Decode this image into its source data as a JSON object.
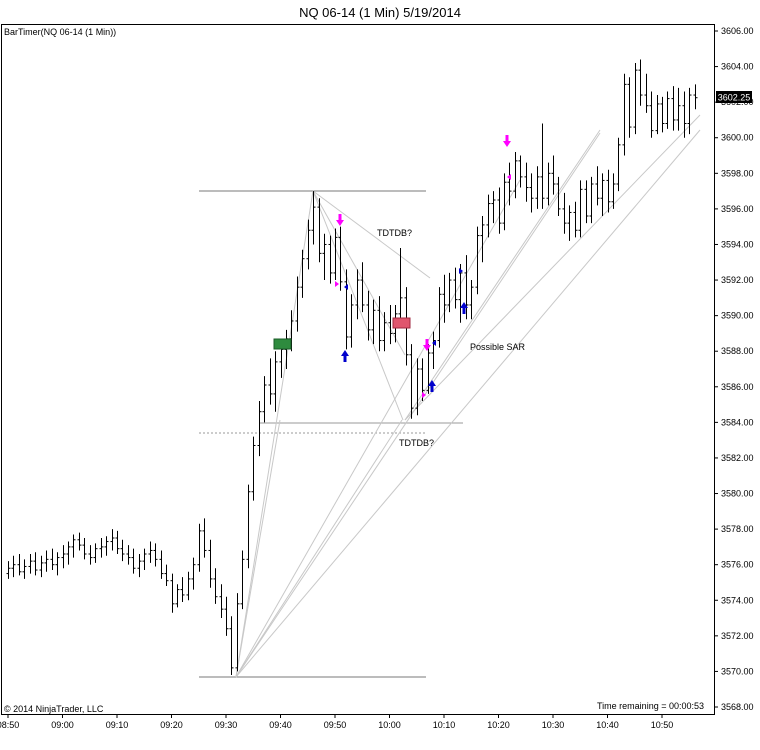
{
  "header": {
    "title": "NQ 06-14 (1 Min)  5/19/2014",
    "indicator": "BarTimer(NQ 06-14 (1 Min))",
    "copyright": "© 2014 NinjaTrader, LLC",
    "time_remaining": "Time remaining = 00:00:53",
    "last_price": "3602.25"
  },
  "chart_data": {
    "type": "ohlc",
    "title": "NQ 06-14 (1 Min)  5/19/2014",
    "ylim": [
      3668,
      3606
    ],
    "y_ticks": [
      "3606.00",
      "3604.00",
      "3602.00",
      "3600.00",
      "3598.00",
      "3596.00",
      "3594.00",
      "3592.00",
      "3590.00",
      "3588.00",
      "3586.00",
      "3584.00",
      "3582.00",
      "3580.00",
      "3578.00",
      "3576.00",
      "3574.00",
      "3572.00",
      "3570.00",
      "3568.00"
    ],
    "y_tick_values": [
      3606,
      3604,
      3602,
      3600,
      3598,
      3596,
      3594,
      3592,
      3590,
      3588,
      3586,
      3584,
      3582,
      3580,
      3578,
      3576,
      3574,
      3572,
      3570,
      3568
    ],
    "x_ticks": [
      "08:50",
      "09:00",
      "09:10",
      "09:20",
      "09:30",
      "09:40",
      "09:50",
      "10:00",
      "10:10",
      "10:20",
      "10:30",
      "10:40",
      "10:50"
    ],
    "x_tick_minutes": [
      0,
      10,
      20,
      30,
      40,
      50,
      60,
      70,
      80,
      90,
      100,
      110,
      120
    ],
    "bars": [
      [
        0,
        3575.5,
        3576.2,
        3575.2,
        3575.8
      ],
      [
        1,
        3575.8,
        3576.5,
        3575.3,
        3576.0
      ],
      [
        2,
        3576.0,
        3576.6,
        3575.4,
        3575.6
      ],
      [
        3,
        3575.6,
        3576.3,
        3575.2,
        3575.9
      ],
      [
        4,
        3575.9,
        3576.6,
        3575.5,
        3576.2
      ],
      [
        5,
        3576.2,
        3576.7,
        3575.4,
        3575.7
      ],
      [
        6,
        3575.7,
        3576.5,
        3575.3,
        3576.1
      ],
      [
        7,
        3576.1,
        3576.8,
        3575.6,
        3576.3
      ],
      [
        8,
        3576.3,
        3576.9,
        3575.7,
        3576.0
      ],
      [
        9,
        3576.0,
        3576.7,
        3575.4,
        3576.4
      ],
      [
        10,
        3576.4,
        3577.1,
        3575.8,
        3576.6
      ],
      [
        11,
        3576.6,
        3577.3,
        3576.0,
        3577.0
      ],
      [
        12,
        3577.0,
        3577.7,
        3576.4,
        3577.4
      ],
      [
        13,
        3577.4,
        3577.8,
        3576.8,
        3577.1
      ],
      [
        14,
        3577.1,
        3577.5,
        3576.3,
        3576.6
      ],
      [
        15,
        3576.6,
        3577.1,
        3576.0,
        3576.4
      ],
      [
        16,
        3576.4,
        3577.2,
        3576.1,
        3576.9
      ],
      [
        17,
        3576.9,
        3577.5,
        3576.4,
        3577.0
      ],
      [
        18,
        3577.0,
        3577.6,
        3576.5,
        3577.3
      ],
      [
        19,
        3577.3,
        3578.0,
        3576.8,
        3577.5
      ],
      [
        20,
        3577.5,
        3577.9,
        3576.6,
        3576.9
      ],
      [
        21,
        3576.9,
        3577.4,
        3576.2,
        3576.6
      ],
      [
        22,
        3576.6,
        3577.1,
        3576.0,
        3576.4
      ],
      [
        23,
        3576.4,
        3576.9,
        3575.5,
        3575.8
      ],
      [
        24,
        3575.8,
        3576.6,
        3575.3,
        3576.2
      ],
      [
        25,
        3576.2,
        3576.9,
        3575.7,
        3576.6
      ],
      [
        26,
        3576.6,
        3577.3,
        3576.1,
        3576.8
      ],
      [
        27,
        3576.8,
        3577.2,
        3575.9,
        3576.3
      ],
      [
        28,
        3576.3,
        3576.8,
        3575.2,
        3575.5
      ],
      [
        29,
        3575.5,
        3576.0,
        3574.8,
        3575.1
      ],
      [
        30,
        3575.1,
        3575.5,
        3573.3,
        3573.8
      ],
      [
        31,
        3573.8,
        3574.9,
        3573.6,
        3574.6
      ],
      [
        32,
        3574.6,
        3575.3,
        3573.9,
        3574.3
      ],
      [
        33,
        3574.3,
        3575.6,
        3574.0,
        3575.2
      ],
      [
        34,
        3575.2,
        3576.4,
        3574.6,
        3576.0
      ],
      [
        35,
        3576.0,
        3578.3,
        3575.6,
        3577.9
      ],
      [
        36,
        3577.9,
        3578.6,
        3576.4,
        3576.8
      ],
      [
        37,
        3576.8,
        3577.4,
        3574.7,
        3575.2
      ],
      [
        38,
        3575.2,
        3575.8,
        3573.8,
        3574.2
      ],
      [
        39,
        3574.2,
        3574.9,
        3573.0,
        3573.5
      ],
      [
        40,
        3573.5,
        3574.2,
        3572.0,
        3572.4
      ],
      [
        41,
        3572.4,
        3573.1,
        3569.8,
        3570.2
      ],
      [
        42,
        3570.2,
        3574.4,
        3570.0,
        3573.8
      ],
      [
        43,
        3573.8,
        3576.8,
        3573.5,
        3576.3
      ],
      [
        44,
        3576.3,
        3580.5,
        3575.8,
        3580.1
      ],
      [
        45,
        3580.1,
        3583.2,
        3579.6,
        3582.7
      ],
      [
        46,
        3582.7,
        3585.2,
        3582.1,
        3584.6
      ],
      [
        47,
        3584.6,
        3586.6,
        3584.0,
        3586.1
      ],
      [
        48,
        3586.1,
        3587.6,
        3585.0,
        3585.6
      ],
      [
        49,
        3585.6,
        3588.0,
        3584.6,
        3587.4
      ],
      [
        50,
        3587.4,
        3588.6,
        3586.5,
        3588.1
      ],
      [
        51,
        3588.1,
        3589.2,
        3587.0,
        3588.7
      ],
      [
        52,
        3588.7,
        3590.3,
        3588.0,
        3589.7
      ],
      [
        53,
        3589.7,
        3592.2,
        3589.1,
        3591.6
      ],
      [
        54,
        3591.6,
        3593.7,
        3591.0,
        3593.2
      ],
      [
        55,
        3593.2,
        3595.4,
        3592.6,
        3594.8
      ],
      [
        56,
        3594.8,
        3597.0,
        3594.0,
        3596.1
      ],
      [
        57,
        3596.1,
        3596.6,
        3593.0,
        3593.5
      ],
      [
        58,
        3593.5,
        3594.6,
        3592.0,
        3594.0
      ],
      [
        59,
        3594.0,
        3594.5,
        3591.8,
        3592.4
      ],
      [
        60,
        3592.4,
        3594.9,
        3592.0,
        3594.4
      ],
      [
        61,
        3594.4,
        3595.0,
        3591.4,
        3591.9
      ],
      [
        62,
        3591.9,
        3592.6,
        3588.1,
        3588.8
      ],
      [
        63,
        3588.8,
        3591.2,
        3588.2,
        3590.6
      ],
      [
        64,
        3590.6,
        3592.6,
        3589.8,
        3592.0
      ],
      [
        65,
        3592.0,
        3593.0,
        3590.2,
        3590.6
      ],
      [
        66,
        3590.6,
        3591.4,
        3588.6,
        3589.2
      ],
      [
        67,
        3589.2,
        3590.9,
        3588.4,
        3590.3
      ],
      [
        68,
        3590.3,
        3591.1,
        3588.0,
        3588.6
      ],
      [
        69,
        3588.6,
        3590.2,
        3588.0,
        3589.6
      ],
      [
        70,
        3589.6,
        3590.6,
        3588.4,
        3589.0
      ],
      [
        71,
        3589.0,
        3590.6,
        3588.5,
        3590.1
      ],
      [
        72,
        3590.1,
        3593.8,
        3589.6,
        3591.0
      ],
      [
        73,
        3591.0,
        3591.6,
        3587.2,
        3587.8
      ],
      [
        74,
        3587.8,
        3588.4,
        3584.2,
        3584.8
      ],
      [
        75,
        3584.8,
        3587.6,
        3584.4,
        3587.0
      ],
      [
        76,
        3587.0,
        3587.6,
        3585.2,
        3585.8
      ],
      [
        77,
        3585.8,
        3588.4,
        3585.6,
        3587.9
      ],
      [
        78,
        3587.9,
        3589.1,
        3587.0,
        3588.6
      ],
      [
        79,
        3588.6,
        3591.6,
        3588.2,
        3591.2
      ],
      [
        80,
        3591.2,
        3592.3,
        3589.6,
        3590.6
      ],
      [
        81,
        3590.6,
        3592.4,
        3590.2,
        3592.0
      ],
      [
        82,
        3592.0,
        3592.7,
        3590.4,
        3590.9
      ],
      [
        83,
        3590.9,
        3592.9,
        3589.6,
        3592.4
      ],
      [
        84,
        3592.4,
        3593.4,
        3589.8,
        3590.6
      ],
      [
        85,
        3590.6,
        3592.0,
        3589.8,
        3591.6
      ],
      [
        86,
        3591.6,
        3595.0,
        3591.2,
        3594.5
      ],
      [
        87,
        3594.5,
        3595.6,
        3593.0,
        3595.1
      ],
      [
        88,
        3595.1,
        3596.8,
        3594.4,
        3596.3
      ],
      [
        89,
        3596.3,
        3597.0,
        3595.2,
        3596.5
      ],
      [
        90,
        3596.5,
        3597.2,
        3594.6,
        3595.2
      ],
      [
        91,
        3595.2,
        3598.0,
        3594.8,
        3597.5
      ],
      [
        92,
        3597.5,
        3598.6,
        3596.2,
        3597.0
      ],
      [
        93,
        3597.0,
        3599.2,
        3596.6,
        3598.7
      ],
      [
        94,
        3598.7,
        3599.0,
        3597.2,
        3597.8
      ],
      [
        95,
        3597.8,
        3598.6,
        3596.4,
        3597.2
      ],
      [
        96,
        3597.2,
        3598.0,
        3595.8,
        3596.6
      ],
      [
        97,
        3596.6,
        3598.4,
        3596.0,
        3597.8
      ],
      [
        98,
        3597.8,
        3600.8,
        3596.0,
        3596.6
      ],
      [
        99,
        3596.6,
        3598.6,
        3596.2,
        3598.0
      ],
      [
        100,
        3598.0,
        3599.0,
        3596.8,
        3597.4
      ],
      [
        101,
        3597.4,
        3597.8,
        3595.6,
        3596.0
      ],
      [
        102,
        3596.0,
        3596.9,
        3594.6,
        3595.2
      ],
      [
        103,
        3595.2,
        3596.2,
        3594.2,
        3595.8
      ],
      [
        104,
        3595.8,
        3596.4,
        3594.4,
        3594.8
      ],
      [
        105,
        3594.8,
        3597.6,
        3594.4,
        3597.1
      ],
      [
        106,
        3597.1,
        3597.6,
        3595.2,
        3595.6
      ],
      [
        107,
        3595.6,
        3597.8,
        3595.2,
        3597.4
      ],
      [
        108,
        3597.4,
        3598.4,
        3596.2,
        3596.6
      ],
      [
        109,
        3596.6,
        3598.0,
        3595.6,
        3597.6
      ],
      [
        110,
        3597.6,
        3598.2,
        3595.8,
        3596.4
      ],
      [
        111,
        3596.4,
        3598.0,
        3596.0,
        3597.4
      ],
      [
        112,
        3597.4,
        3600.0,
        3597.0,
        3599.6
      ],
      [
        113,
        3599.6,
        3603.6,
        3599.0,
        3603.0
      ],
      [
        114,
        3603.0,
        3603.4,
        3600.0,
        3600.6
      ],
      [
        115,
        3600.6,
        3604.2,
        3600.2,
        3603.8
      ],
      [
        116,
        3603.8,
        3604.4,
        3601.8,
        3602.4
      ],
      [
        117,
        3602.4,
        3603.6,
        3601.4,
        3601.8
      ],
      [
        118,
        3601.8,
        3602.6,
        3600.0,
        3600.4
      ],
      [
        119,
        3600.4,
        3602.4,
        3600.2,
        3601.9
      ],
      [
        120,
        3601.9,
        3602.3,
        3600.3,
        3600.8
      ],
      [
        121,
        3600.8,
        3602.6,
        3600.5,
        3602.2
      ],
      [
        122,
        3602.2,
        3602.9,
        3600.4,
        3601.0
      ],
      [
        123,
        3601.0,
        3602.8,
        3600.4,
        3601.8
      ],
      [
        124,
        3601.8,
        3602.6,
        3600.0,
        3600.8
      ],
      [
        125,
        3600.8,
        3602.8,
        3600.2,
        3602.4
      ],
      [
        126,
        3602.4,
        3603.0,
        3601.6,
        3602.25
      ]
    ],
    "annotations": [
      "TDTDB?",
      "TDTDB?",
      "Possible SAR"
    ],
    "colors": {
      "bars": "#000000",
      "up_arrow": "#0000cc",
      "down_arrow": "#ff00ff",
      "green_box": "#2e8b3e",
      "red_box": "#e0566e",
      "lines": "#bdbdbd"
    }
  }
}
